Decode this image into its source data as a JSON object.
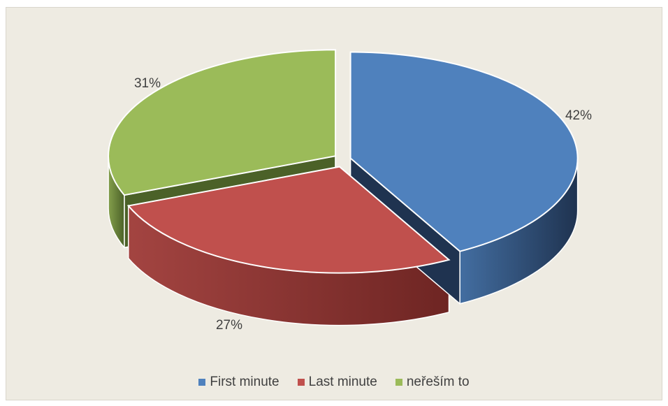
{
  "chart_data": {
    "type": "pie",
    "title": "",
    "style": "3d-exploded",
    "categories": [
      "First minute",
      "Last minute",
      "neřeším to"
    ],
    "values": [
      42,
      27,
      31
    ],
    "unit": "%",
    "data_labels": [
      "42%",
      "27%",
      "31%"
    ],
    "legend_position": "bottom",
    "colors": [
      "#4f81bd",
      "#c0504d",
      "#9bbb59"
    ],
    "side_colors": [
      "#1f3350",
      "#6e2523",
      "#4b6128"
    ]
  }
}
